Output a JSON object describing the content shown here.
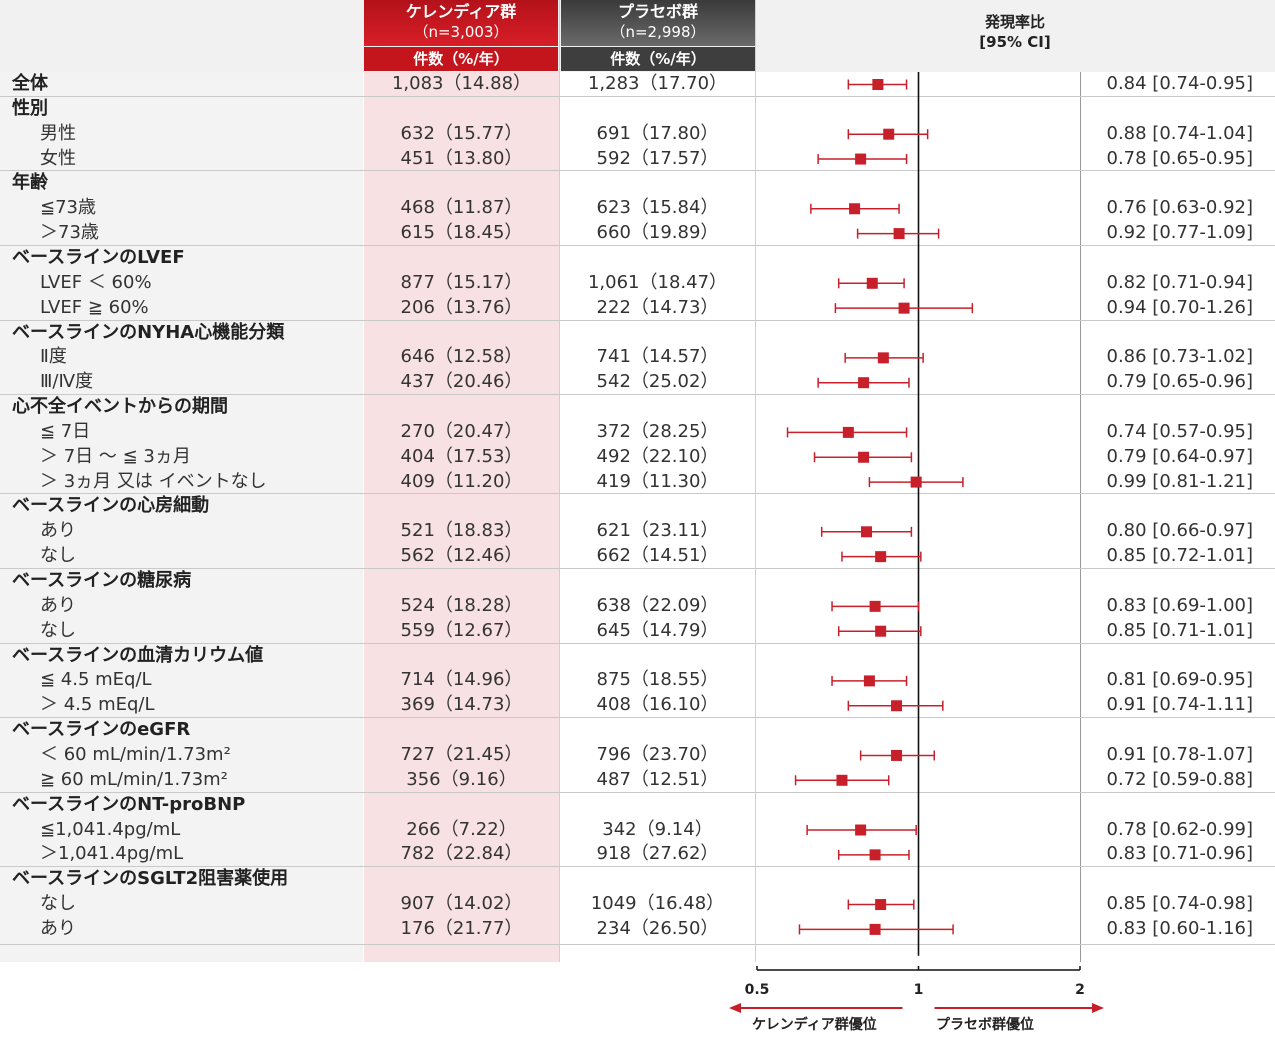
{
  "header": {
    "kerendia_name": "ケレンディア群",
    "kerendia_n": "（n=3,003）",
    "kerendia_unit": "件数（%/年）",
    "placebo_name": "プラセボ群",
    "placebo_n": "（n=2,998）",
    "placebo_unit": "件数（%/年）",
    "rr_title": "発現率比",
    "rr_ci": "[95% CI]"
  },
  "rows": [
    {
      "label": "全体",
      "head": true,
      "k": "1,083（14.88）",
      "p": "1,283（17.70）",
      "rr": "0.84 [0.74-0.95]",
      "est": 0.84,
      "lo": 0.74,
      "hi": 0.95
    },
    {
      "label": "性別",
      "head": true
    },
    {
      "label": "男性",
      "k": "632（15.77）",
      "p": "691（17.80）",
      "rr": "0.88 [0.74-1.04]",
      "est": 0.88,
      "lo": 0.74,
      "hi": 1.04
    },
    {
      "label": "女性",
      "k": "451（13.80）",
      "p": "592（17.57）",
      "rr": "0.78 [0.65-0.95]",
      "est": 0.78,
      "lo": 0.65,
      "hi": 0.95
    },
    {
      "label": "年齢",
      "head": true
    },
    {
      "label": "≦73歳",
      "k": "468（11.87）",
      "p": "623（15.84）",
      "rr": "0.76 [0.63-0.92]",
      "est": 0.76,
      "lo": 0.63,
      "hi": 0.92
    },
    {
      "label": "＞73歳",
      "k": "615（18.45）",
      "p": "660（19.89）",
      "rr": "0.92 [0.77-1.09]",
      "est": 0.92,
      "lo": 0.77,
      "hi": 1.09
    },
    {
      "label": "ベースラインのLVEF",
      "head": true
    },
    {
      "label": "LVEF ＜ 60%",
      "k": "877（15.17）",
      "p": "1,061（18.47）",
      "rr": "0.82 [0.71-0.94]",
      "est": 0.82,
      "lo": 0.71,
      "hi": 0.94
    },
    {
      "label": "LVEF ≧ 60%",
      "k": "206（13.76）",
      "p": "222（14.73）",
      "rr": "0.94 [0.70-1.26]",
      "est": 0.94,
      "lo": 0.7,
      "hi": 1.26
    },
    {
      "label": "ベースラインのNYHA心機能分類",
      "head": true
    },
    {
      "label": "Ⅱ度",
      "k": "646（12.58）",
      "p": "741（14.57）",
      "rr": "0.86 [0.73-1.02]",
      "est": 0.86,
      "lo": 0.73,
      "hi": 1.02
    },
    {
      "label": "Ⅲ/Ⅳ度",
      "k": "437（20.46）",
      "p": "542（25.02）",
      "rr": "0.79 [0.65-0.96]",
      "est": 0.79,
      "lo": 0.65,
      "hi": 0.96
    },
    {
      "label": "心不全イベントからの期間",
      "head": true
    },
    {
      "label": "≦ 7日",
      "k": "270（20.47）",
      "p": "372（28.25）",
      "rr": "0.74 [0.57-0.95]",
      "est": 0.74,
      "lo": 0.57,
      "hi": 0.95
    },
    {
      "label": "＞ 7日 ～ ≦ 3ヵ月",
      "k": "404（17.53）",
      "p": "492（22.10）",
      "rr": "0.79 [0.64-0.97]",
      "est": 0.79,
      "lo": 0.64,
      "hi": 0.97
    },
    {
      "label": "＞ 3ヵ月 又は イベントなし",
      "k": "409（11.20）",
      "p": "419（11.30）",
      "rr": "0.99 [0.81-1.21]",
      "est": 0.99,
      "lo": 0.81,
      "hi": 1.21
    },
    {
      "label": "ベースラインの心房細動",
      "head": true
    },
    {
      "label": "あり",
      "k": "521（18.83）",
      "p": "621（23.11）",
      "rr": "0.80 [0.66-0.97]",
      "est": 0.8,
      "lo": 0.66,
      "hi": 0.97
    },
    {
      "label": "なし",
      "k": "562（12.46）",
      "p": "662（14.51）",
      "rr": "0.85 [0.72-1.01]",
      "est": 0.85,
      "lo": 0.72,
      "hi": 1.01
    },
    {
      "label": "ベースラインの糖尿病",
      "head": true
    },
    {
      "label": "あり",
      "k": "524（18.28）",
      "p": "638（22.09）",
      "rr": "0.83 [0.69-1.00]",
      "est": 0.83,
      "lo": 0.69,
      "hi": 1.0
    },
    {
      "label": "なし",
      "k": "559（12.67）",
      "p": "645（14.79）",
      "rr": "0.85 [0.71-1.01]",
      "est": 0.85,
      "lo": 0.71,
      "hi": 1.01
    },
    {
      "label": "ベースラインの血清カリウム値",
      "head": true
    },
    {
      "label": "≦ 4.5 mEq/L",
      "k": "714（14.96）",
      "p": "875（18.55）",
      "rr": "0.81 [0.69-0.95]",
      "est": 0.81,
      "lo": 0.69,
      "hi": 0.95
    },
    {
      "label": "＞ 4.5 mEq/L",
      "k": "369（14.73）",
      "p": "408（16.10）",
      "rr": "0.91 [0.74-1.11]",
      "est": 0.91,
      "lo": 0.74,
      "hi": 1.11
    },
    {
      "label": "ベースラインのeGFR",
      "head": true
    },
    {
      "label": "＜ 60 mL/min/1.73m²",
      "k": "727（21.45）",
      "p": "796（23.70）",
      "rr": "0.91 [0.78-1.07]",
      "est": 0.91,
      "lo": 0.78,
      "hi": 1.07
    },
    {
      "label": "≧ 60 mL/min/1.73m²",
      "k": "356（9.16）",
      "p": "487（12.51）",
      "rr": "0.72 [0.59-0.88]",
      "est": 0.72,
      "lo": 0.59,
      "hi": 0.88
    },
    {
      "label": "ベースラインのNT-proBNP",
      "head": true
    },
    {
      "label": "≦1,041.4pg/mL",
      "k": "266（7.22）",
      "p": "342（9.14）",
      "rr": "0.78 [0.62-0.99]",
      "est": 0.78,
      "lo": 0.62,
      "hi": 0.99
    },
    {
      "label": "＞1,041.4pg/mL",
      "k": "782（22.84）",
      "p": "918（27.62）",
      "rr": "0.83 [0.71-0.96]",
      "est": 0.83,
      "lo": 0.71,
      "hi": 0.96
    },
    {
      "label": "ベースラインのSGLT2阻害薬使用",
      "head": true
    },
    {
      "label": "なし",
      "k": "907（14.02）",
      "p": "1049（16.48）",
      "rr": "0.85 [0.74-0.98]",
      "est": 0.85,
      "lo": 0.74,
      "hi": 0.98
    },
    {
      "label": "あり",
      "k": "176（21.77）",
      "p": "234（26.50）",
      "rr": "0.83 [0.60-1.16]",
      "est": 0.83,
      "lo": 0.6,
      "hi": 1.16
    }
  ],
  "chart_data": {
    "type": "scatter",
    "x_scale": "log",
    "xlim": [
      0.5,
      2
    ],
    "x_ticks": [
      "0.5",
      "1",
      "2"
    ],
    "reference_line": 1,
    "favor_left": "ケレンディア群優位",
    "favor_right": "プラセボ群優位",
    "marker_color": "#c8202a"
  }
}
